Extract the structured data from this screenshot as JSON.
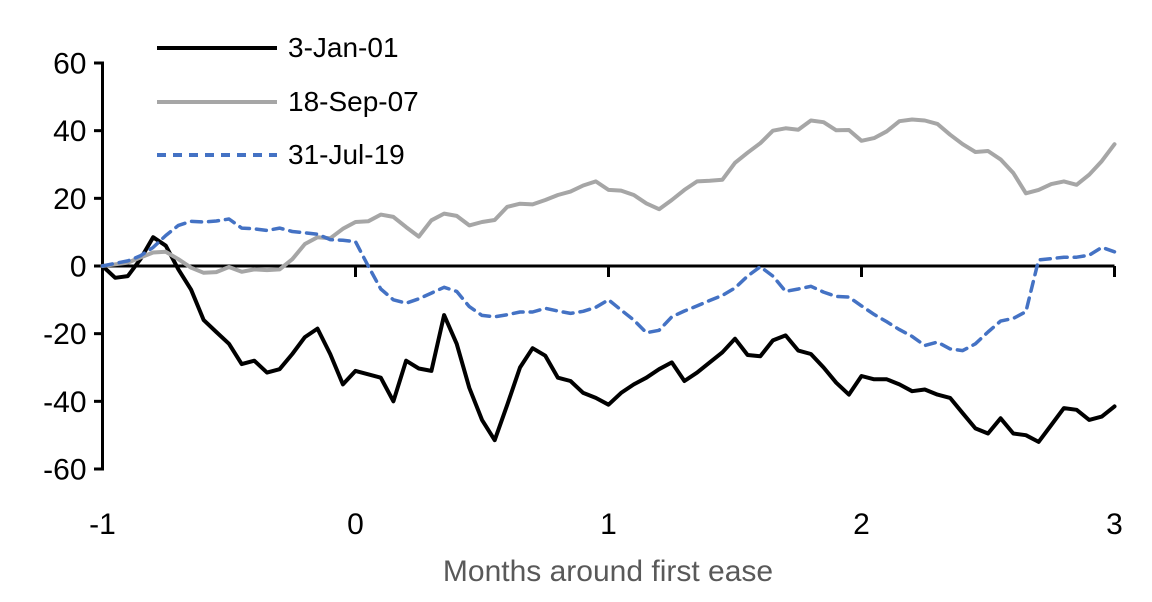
{
  "page": {
    "background": "#ffffff"
  },
  "chart_data": {
    "type": "line",
    "title": "",
    "xlabel": "Months around first ease",
    "ylabel": "",
    "xlim": [
      -1,
      3
    ],
    "ylim": [
      -60,
      60
    ],
    "grid": false,
    "legend_position": "top-left-inside",
    "axis_color": "#000000",
    "xlabel_color": "#595959",
    "x_ticks": [
      "-1",
      "0",
      "1",
      "2",
      "3"
    ],
    "x_tick_values": [
      -1,
      0,
      1,
      2,
      3
    ],
    "y_ticks": [
      "60",
      "40",
      "20",
      "0",
      "-20",
      "-40",
      "-60"
    ],
    "y_tick_values": [
      60,
      40,
      20,
      0,
      -20,
      -40,
      -60
    ],
    "x": [
      -1,
      -0.95,
      -0.9,
      -0.85,
      -0.8,
      -0.75,
      -0.7,
      -0.65,
      -0.6,
      -0.55,
      -0.5,
      -0.45,
      -0.4,
      -0.35,
      -0.3,
      -0.25,
      -0.2,
      -0.15,
      -0.1,
      -0.05,
      0,
      0.05,
      0.1,
      0.15,
      0.2,
      0.25,
      0.3,
      0.35,
      0.4,
      0.45,
      0.5,
      0.55,
      0.6,
      0.65,
      0.7,
      0.75,
      0.8,
      0.85,
      0.9,
      0.95,
      1,
      1.05,
      1.1,
      1.15,
      1.2,
      1.25,
      1.3,
      1.35,
      1.4,
      1.45,
      1.5,
      1.55,
      1.6,
      1.65,
      1.7,
      1.75,
      1.8,
      1.85,
      1.9,
      1.95,
      2,
      2.05,
      2.1,
      2.15,
      2.2,
      2.25,
      2.3,
      2.35,
      2.4,
      2.45,
      2.5,
      2.55,
      2.6,
      2.65,
      2.7,
      2.75,
      2.8,
      2.85,
      2.9,
      2.95,
      3
    ],
    "series": [
      {
        "name": "3-Jan-01",
        "color": "#000000",
        "line_style": "solid",
        "values": [
          0,
          -3.5,
          -3,
          2,
          8.5,
          6,
          -1,
          -7,
          -16,
          -19.5,
          -23,
          -29,
          -28,
          -31.5,
          -30.5,
          -26,
          -21,
          -18.5,
          -26,
          -35,
          -31,
          -32,
          -33,
          -40,
          -28,
          -30.3,
          -31,
          -14.5,
          -23,
          -36,
          -45.5,
          -51.5,
          -41,
          -30,
          -24.3,
          -26.5,
          -33,
          -34,
          -37.5,
          -39,
          -41,
          -37.5,
          -35,
          -33,
          -30.5,
          -28.5,
          -34,
          -31.5,
          -28.5,
          -25.5,
          -21.5,
          -26.3,
          -26.7,
          -22,
          -20.5,
          -25,
          -26,
          -30,
          -34.5,
          -38,
          -32.5,
          -33.5,
          -33.5,
          -35,
          -37,
          -36.5,
          -38,
          -39,
          -43.5,
          -48,
          -49.5,
          -45,
          -49.5,
          -50,
          -52,
          -47,
          -42,
          -42.5,
          -45.5,
          -44.5,
          -41.5
        ]
      },
      {
        "name": "18-Sep-07",
        "color": "#a6a6a6",
        "line_style": "solid",
        "values": [
          0,
          0.5,
          1,
          2.5,
          4,
          4.2,
          2,
          -0.5,
          -2,
          -1.8,
          -0.3,
          -1.7,
          -1,
          -1.2,
          -1,
          2,
          6.5,
          8.5,
          8.2,
          11,
          13,
          13.2,
          15.2,
          14.5,
          11.5,
          8.7,
          13.5,
          15.5,
          14.8,
          12,
          13,
          13.6,
          17.5,
          18.4,
          18.2,
          19.5,
          21,
          22,
          23.8,
          25,
          22.5,
          22.3,
          21,
          18.5,
          16.8,
          19.5,
          22.5,
          25,
          25.2,
          25.5,
          30.5,
          33.5,
          36.3,
          40,
          40.7,
          40.3,
          43,
          42.5,
          40.1,
          40.2,
          37,
          37.8,
          39.8,
          42.8,
          43.3,
          43,
          42,
          38.8,
          36,
          33.7,
          34,
          31.5,
          27.5,
          21.5,
          22.5,
          24.2,
          25,
          24,
          27,
          31,
          36
        ]
      },
      {
        "name": "31-Jul-19",
        "color": "#4472c4",
        "line_style": "dashed",
        "values": [
          0,
          0.8,
          1.5,
          3,
          5.5,
          9,
          12,
          13.2,
          13,
          13.3,
          13.9,
          11.2,
          11,
          10.5,
          11.2,
          10.2,
          9.8,
          9.4,
          7.8,
          7.6,
          7.2,
          0,
          -6.8,
          -10,
          -11,
          -9.7,
          -8,
          -6.3,
          -7.5,
          -12,
          -14.6,
          -15,
          -14.4,
          -13.6,
          -13.6,
          -12.5,
          -13.3,
          -14,
          -13.4,
          -12.2,
          -10,
          -13,
          -16,
          -19.7,
          -19,
          -15,
          -13.3,
          -11.8,
          -10.2,
          -8.7,
          -6.5,
          -3,
          -0.2,
          -3,
          -7.5,
          -6.8,
          -6,
          -7.7,
          -9,
          -9.2,
          -11.8,
          -14.3,
          -16.5,
          -18.8,
          -20.8,
          -23.5,
          -22.5,
          -24.5,
          -25,
          -23,
          -19.5,
          -16.3,
          -15.5,
          -13.5,
          1.8,
          2.2,
          2.6,
          2.6,
          3.2,
          5.5,
          4.2
        ]
      }
    ]
  }
}
